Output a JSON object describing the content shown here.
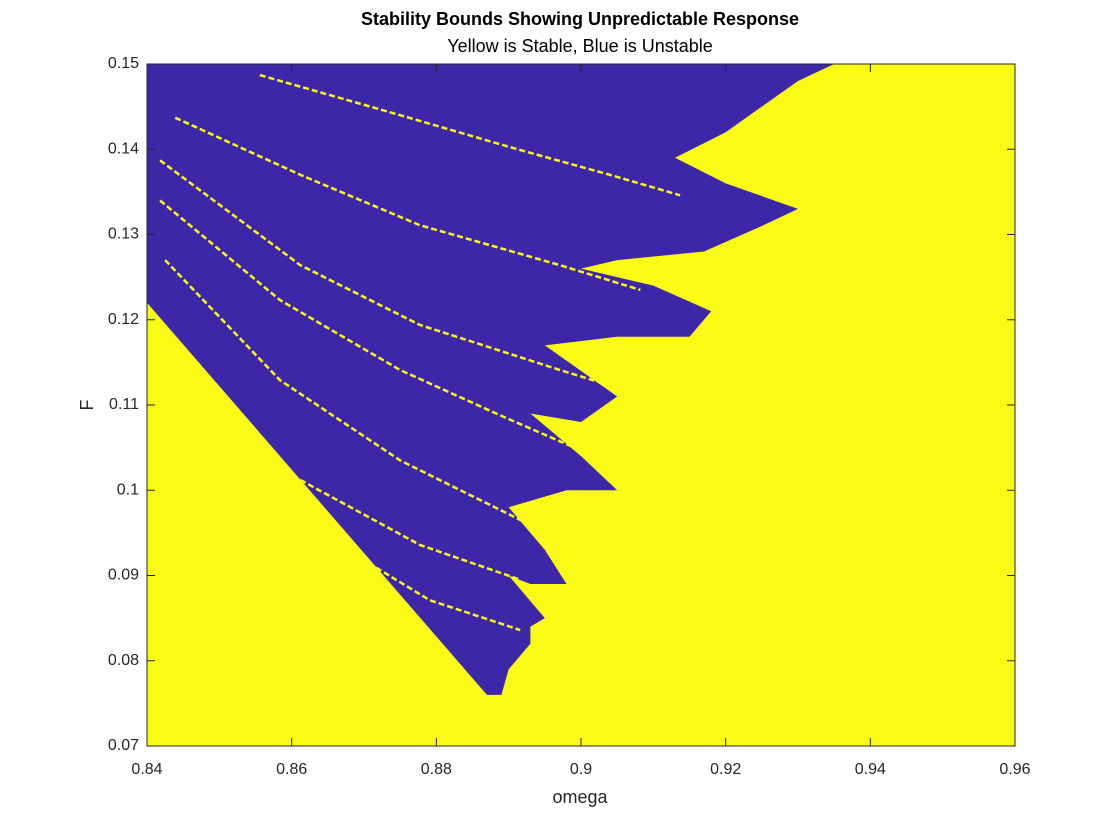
{
  "chart_data": {
    "type": "region",
    "title": "Stability Bounds Showing Unpredictable Response",
    "subtitle": "Yellow is Stable, Blue is Unstable",
    "xlabel": "omega",
    "ylabel": "F",
    "xlim": [
      0.84,
      0.96
    ],
    "ylim": [
      0.07,
      0.15
    ],
    "xticks": [
      0.84,
      0.86,
      0.88,
      0.9,
      0.92,
      0.94,
      0.96
    ],
    "yticks": [
      0.07,
      0.08,
      0.09,
      0.1,
      0.11,
      0.12,
      0.13,
      0.14,
      0.15
    ],
    "background_color": "#f9fb15",
    "region_color": "#3e26a8",
    "streak_color": "#f9fb15",
    "regions": [
      {
        "x": [
          0.84,
          0.935,
          0.93,
          0.92,
          0.913,
          0.92,
          0.93,
          0.925,
          0.917,
          0.905,
          0.9,
          0.91,
          0.918,
          0.915,
          0.905,
          0.895,
          0.9,
          0.905,
          0.9,
          0.893,
          0.9,
          0.905,
          0.898,
          0.89,
          0.895,
          0.898,
          0.893,
          0.89,
          0.893,
          0.895,
          0.893,
          0.893,
          0.89,
          0.889,
          0.887,
          0.84
        ],
        "y": [
          0.15,
          0.15,
          0.148,
          0.142,
          0.139,
          0.136,
          0.133,
          0.131,
          0.128,
          0.127,
          0.126,
          0.124,
          0.121,
          0.118,
          0.118,
          0.117,
          0.114,
          0.111,
          0.108,
          0.109,
          0.104,
          0.1,
          0.1,
          0.098,
          0.093,
          0.089,
          0.089,
          0.09,
          0.087,
          0.085,
          0.084,
          0.082,
          0.079,
          0.076,
          0.076,
          0.122
        ]
      }
    ],
    "streaks": [
      {
        "x": [
          0.8556,
          0.875,
          0.8916,
          0.904,
          0.9137
        ],
        "y": [
          0.1487,
          0.144,
          0.1399,
          0.137,
          0.1346
        ]
      },
      {
        "x": [
          0.8439,
          0.8612,
          0.8777,
          0.8971,
          0.9082
        ],
        "y": [
          0.1437,
          0.137,
          0.1311,
          0.1264,
          0.1235
        ]
      },
      {
        "x": [
          0.8418,
          0.8612,
          0.8777,
          0.8971,
          0.9082
        ],
        "y": [
          0.1387,
          0.1264,
          0.1194,
          0.1141,
          0.1112
        ]
      },
      {
        "x": [
          0.8418,
          0.8584,
          0.875,
          0.8888,
          0.8999
        ],
        "y": [
          0.134,
          0.1223,
          0.1141,
          0.1088,
          0.1047
        ]
      },
      {
        "x": [
          0.8425,
          0.8584,
          0.875,
          0.8888,
          0.8971
        ],
        "y": [
          0.127,
          0.1129,
          0.1035,
          0.0977,
          0.0942
        ]
      },
      {
        "x": [
          0.8612,
          0.8777,
          0.8916
        ],
        "y": [
          0.1012,
          0.0936,
          0.0895
        ]
      },
      {
        "x": [
          0.8653,
          0.8791,
          0.8916
        ],
        "y": [
          0.0942,
          0.0871,
          0.0836
        ]
      }
    ]
  }
}
